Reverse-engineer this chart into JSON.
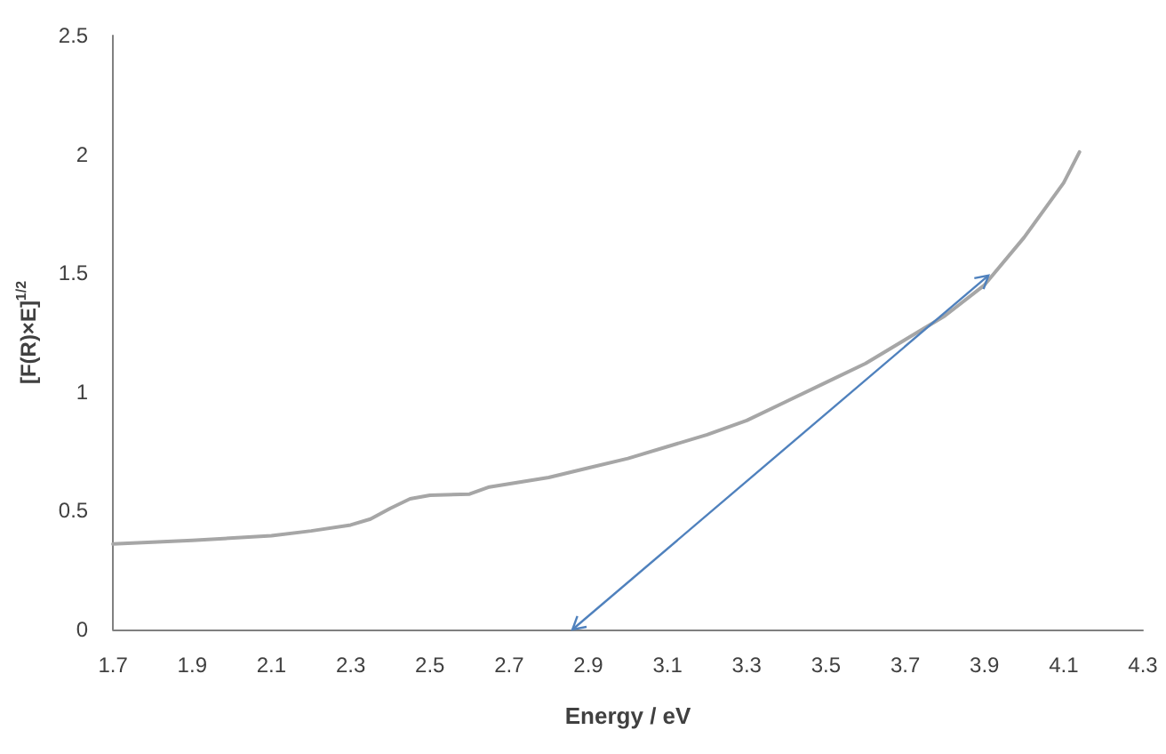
{
  "chart_data": {
    "type": "line",
    "xlabel": "Energy / eV",
    "ylabel": "[F(R)×E]$^{1/2}$",
    "xlim": [
      1.7,
      4.3
    ],
    "xticks": [
      1.7,
      1.9,
      2.1,
      2.3,
      2.5,
      2.7,
      2.9,
      3.1,
      3.3,
      3.5,
      3.7,
      3.9,
      4.1,
      4.3
    ],
    "ylim": [
      0,
      2.5
    ],
    "yticks": [
      0,
      0.5,
      1,
      1.5,
      2,
      2.5
    ],
    "grid": false,
    "marker": "none",
    "line_style": "solid",
    "series": [
      {
        "color": "#a6a6a6",
        "x": [
          1.7,
          1.9,
          2.1,
          2.2,
          2.3,
          2.35,
          2.4,
          2.45,
          2.5,
          2.6,
          2.65,
          2.8,
          2.9,
          3.0,
          3.1,
          3.2,
          3.3,
          3.4,
          3.5,
          3.6,
          3.7,
          3.8,
          3.9,
          4.0,
          4.1,
          4.14
        ],
        "values": [
          0.36,
          0.375,
          0.395,
          0.415,
          0.44,
          0.465,
          0.51,
          0.55,
          0.565,
          0.57,
          0.6,
          0.64,
          0.68,
          0.72,
          0.77,
          0.82,
          0.88,
          0.96,
          1.04,
          1.12,
          1.22,
          1.32,
          1.45,
          1.65,
          1.88,
          2.01
        ]
      },
      {
        "type": "line",
        "color": "#4f81bd",
        "x": [
          2.86,
          3.91
        ],
        "values": [
          0,
          1.49
        ]
      }
    ]
  }
}
